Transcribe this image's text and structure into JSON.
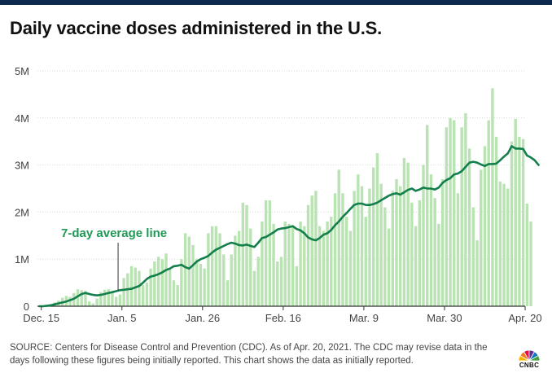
{
  "title": "Daily vaccine doses administered in the U.S.",
  "footer": {
    "source": "SOURCE: Centers for Disease Control and Prevention (CDC). As of Apr. 20, 2021. The CDC may revise data in the days following these figures being initially reported. This chart shows the data as initially reported."
  },
  "logo": {
    "text": "CNBC",
    "icon": "cnbc-peacock-icon",
    "colors": [
      "#f7b500",
      "#f47920",
      "#e0123f",
      "#6a2c91",
      "#1475bc",
      "#3ea53a"
    ]
  },
  "colors": {
    "bar": "#b9e3b3",
    "line": "#137f4c",
    "annotation": "#1f9a56",
    "grid": "#d9d9d9",
    "axis": "#333333",
    "header_bar": "#0d2a4e"
  },
  "chart_data": {
    "type": "bar",
    "x_start": "2020-12-14",
    "x_end": "2021-04-20",
    "ylim": [
      0,
      5
    ],
    "y_unit": "M",
    "yticks": [
      "0",
      "1M",
      "2M",
      "3M",
      "4M",
      "5M"
    ],
    "xticks": [
      {
        "date": "2020-12-15",
        "label": "Dec. 15"
      },
      {
        "date": "2021-01-05",
        "label": "Jan. 5"
      },
      {
        "date": "2021-01-26",
        "label": "Jan. 26"
      },
      {
        "date": "2021-02-16",
        "label": "Feb. 16"
      },
      {
        "date": "2021-03-09",
        "label": "Mar. 9"
      },
      {
        "date": "2021-03-30",
        "label": "Mar. 30"
      },
      {
        "date": "2021-04-20",
        "label": "Apr. 20"
      }
    ],
    "grid": true,
    "series": [
      {
        "kind": "bar",
        "values": [
          0.0,
          0.01,
          0.02,
          0.04,
          0.08,
          0.12,
          0.18,
          0.22,
          0.2,
          0.28,
          0.36,
          0.34,
          0.33,
          0.1,
          0.06,
          0.16,
          0.3,
          0.35,
          0.36,
          0.3,
          0.2,
          0.25,
          0.6,
          0.7,
          0.85,
          0.82,
          0.75,
          0.45,
          0.5,
          0.8,
          0.95,
          1.05,
          1.0,
          1.12,
          0.78,
          0.55,
          0.45,
          1.0,
          1.55,
          1.48,
          1.3,
          1.0,
          0.9,
          0.8,
          1.55,
          1.7,
          1.7,
          1.55,
          1.1,
          0.55,
          1.1,
          1.5,
          1.6,
          2.2,
          2.15,
          1.65,
          0.75,
          1.05,
          1.8,
          2.25,
          2.25,
          1.75,
          0.95,
          1.05,
          1.8,
          1.75,
          1.7,
          0.85,
          1.8,
          1.7,
          2.15,
          2.35,
          2.45,
          1.7,
          1.6,
          1.8,
          1.9,
          2.4,
          2.9,
          2.4,
          1.9,
          1.6,
          2.45,
          2.8,
          2.55,
          1.9,
          2.5,
          2.95,
          3.25,
          2.6,
          2.1,
          1.65,
          2.45,
          2.7,
          2.55,
          3.15,
          3.05,
          2.2,
          1.7,
          2.25,
          3.0,
          3.85,
          2.8,
          2.3,
          1.75,
          2.7,
          3.8,
          4.0,
          3.95,
          2.4,
          3.8,
          4.1,
          3.35,
          2.1,
          1.4,
          2.9,
          3.4,
          3.95,
          4.63,
          3.6,
          2.65,
          2.6,
          2.5,
          3.5,
          3.98,
          3.6,
          3.55,
          2.18,
          1.8
        ],
        "draw_order": "behind"
      },
      {
        "kind": "line",
        "name": "7-day average line",
        "values": [
          0.0,
          0.0,
          0.01,
          0.02,
          0.04,
          0.06,
          0.08,
          0.1,
          0.13,
          0.16,
          0.21,
          0.26,
          0.28,
          0.26,
          0.24,
          0.23,
          0.24,
          0.26,
          0.28,
          0.3,
          0.32,
          0.34,
          0.35,
          0.36,
          0.37,
          0.4,
          0.43,
          0.5,
          0.58,
          0.63,
          0.65,
          0.68,
          0.72,
          0.77,
          0.8,
          0.85,
          0.86,
          0.88,
          0.83,
          0.8,
          0.87,
          0.95,
          1.0,
          1.03,
          1.07,
          1.14,
          1.2,
          1.24,
          1.28,
          1.32,
          1.35,
          1.33,
          1.3,
          1.29,
          1.31,
          1.28,
          1.26,
          1.35,
          1.45,
          1.47,
          1.52,
          1.57,
          1.63,
          1.65,
          1.66,
          1.68,
          1.7,
          1.64,
          1.61,
          1.55,
          1.46,
          1.42,
          1.4,
          1.45,
          1.52,
          1.55,
          1.62,
          1.72,
          1.8,
          1.9,
          1.98,
          2.07,
          2.15,
          2.18,
          2.18,
          2.15,
          2.15,
          2.17,
          2.2,
          2.25,
          2.3,
          2.35,
          2.38,
          2.4,
          2.37,
          2.42,
          2.47,
          2.5,
          2.45,
          2.48,
          2.52,
          2.5,
          2.5,
          2.48,
          2.52,
          2.62,
          2.68,
          2.72,
          2.8,
          2.82,
          2.87,
          2.96,
          3.05,
          3.07,
          3.05,
          3.01,
          2.98,
          3.02,
          3.02,
          3.03,
          3.1,
          3.18,
          3.25,
          3.4,
          3.35,
          3.35,
          3.34,
          3.2,
          3.16,
          3.1,
          3.0
        ]
      }
    ],
    "annotations": [
      {
        "text": "7-day average line",
        "date": "2021-01-04",
        "value": 0.26
      }
    ]
  }
}
